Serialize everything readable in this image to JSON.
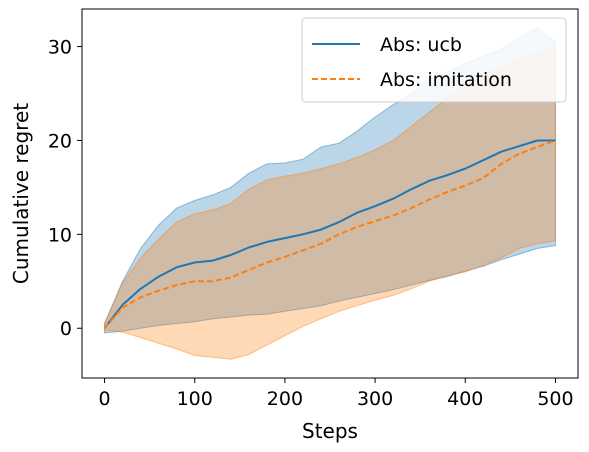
{
  "chart_data": {
    "type": "line",
    "xlabel": "Steps",
    "ylabel": "Cumulative regret",
    "xlim": [
      -25,
      525
    ],
    "ylim": [
      -5.3,
      34
    ],
    "xticks": [
      0,
      100,
      200,
      300,
      400,
      500
    ],
    "yticks": [
      0,
      10,
      20,
      30
    ],
    "legend_position": "top-right",
    "series": [
      {
        "name": "Abs: ucb",
        "color": "#1f77b4",
        "style": "solid",
        "x": [
          0,
          20,
          40,
          60,
          80,
          100,
          120,
          140,
          160,
          180,
          200,
          220,
          240,
          260,
          280,
          300,
          320,
          340,
          360,
          380,
          400,
          420,
          440,
          460,
          480,
          500
        ],
        "y": [
          0,
          2.5,
          4.2,
          5.5,
          6.5,
          7.0,
          7.2,
          7.8,
          8.6,
          9.2,
          9.6,
          10.0,
          10.5,
          11.3,
          12.3,
          13.0,
          13.8,
          14.8,
          15.7,
          16.3,
          17.0,
          17.9,
          18.8,
          19.4,
          20.0,
          20.0
        ],
        "lower": [
          -0.5,
          -0.3,
          0.0,
          0.3,
          0.5,
          0.7,
          1.0,
          1.2,
          1.4,
          1.5,
          1.8,
          2.1,
          2.4,
          2.9,
          3.3,
          3.7,
          4.1,
          4.6,
          5.1,
          5.5,
          6.1,
          6.6,
          7.3,
          7.9,
          8.5,
          8.8
        ],
        "upper": [
          0.5,
          5.0,
          8.5,
          11.0,
          12.8,
          13.6,
          14.2,
          15.0,
          16.5,
          17.5,
          17.6,
          18.0,
          19.3,
          19.7,
          21.0,
          22.5,
          23.8,
          25.0,
          26.5,
          27.3,
          28.2,
          29.0,
          29.7,
          31.0,
          32.0,
          30.5
        ]
      },
      {
        "name": "Abs: imitation",
        "color": "#ff7f0e",
        "style": "dashed",
        "x": [
          0,
          20,
          40,
          60,
          80,
          100,
          120,
          140,
          160,
          180,
          200,
          220,
          240,
          260,
          280,
          300,
          320,
          340,
          360,
          380,
          400,
          420,
          440,
          460,
          480,
          500
        ],
        "y": [
          0,
          2.2,
          3.3,
          4.0,
          4.6,
          5.0,
          5.0,
          5.4,
          6.2,
          7.0,
          7.6,
          8.3,
          9.0,
          10.0,
          10.8,
          11.4,
          12.0,
          12.8,
          13.7,
          14.5,
          15.2,
          16.0,
          17.5,
          18.6,
          19.3,
          20.0
        ],
        "lower": [
          -0.2,
          -0.4,
          -1.0,
          -1.6,
          -2.2,
          -2.9,
          -3.1,
          -3.3,
          -2.8,
          -1.8,
          -0.8,
          0.2,
          1.0,
          1.8,
          2.4,
          3.0,
          3.5,
          4.2,
          5.0,
          5.6,
          6.0,
          6.7,
          7.5,
          8.5,
          9.0,
          9.3
        ],
        "upper": [
          0.5,
          4.8,
          7.5,
          9.5,
          11.3,
          12.2,
          12.6,
          13.3,
          14.8,
          15.8,
          16.2,
          16.5,
          17.0,
          17.5,
          18.2,
          19.0,
          20.0,
          21.5,
          23.0,
          24.5,
          25.8,
          27.0,
          27.8,
          28.6,
          29.3,
          29.8
        ]
      }
    ]
  }
}
